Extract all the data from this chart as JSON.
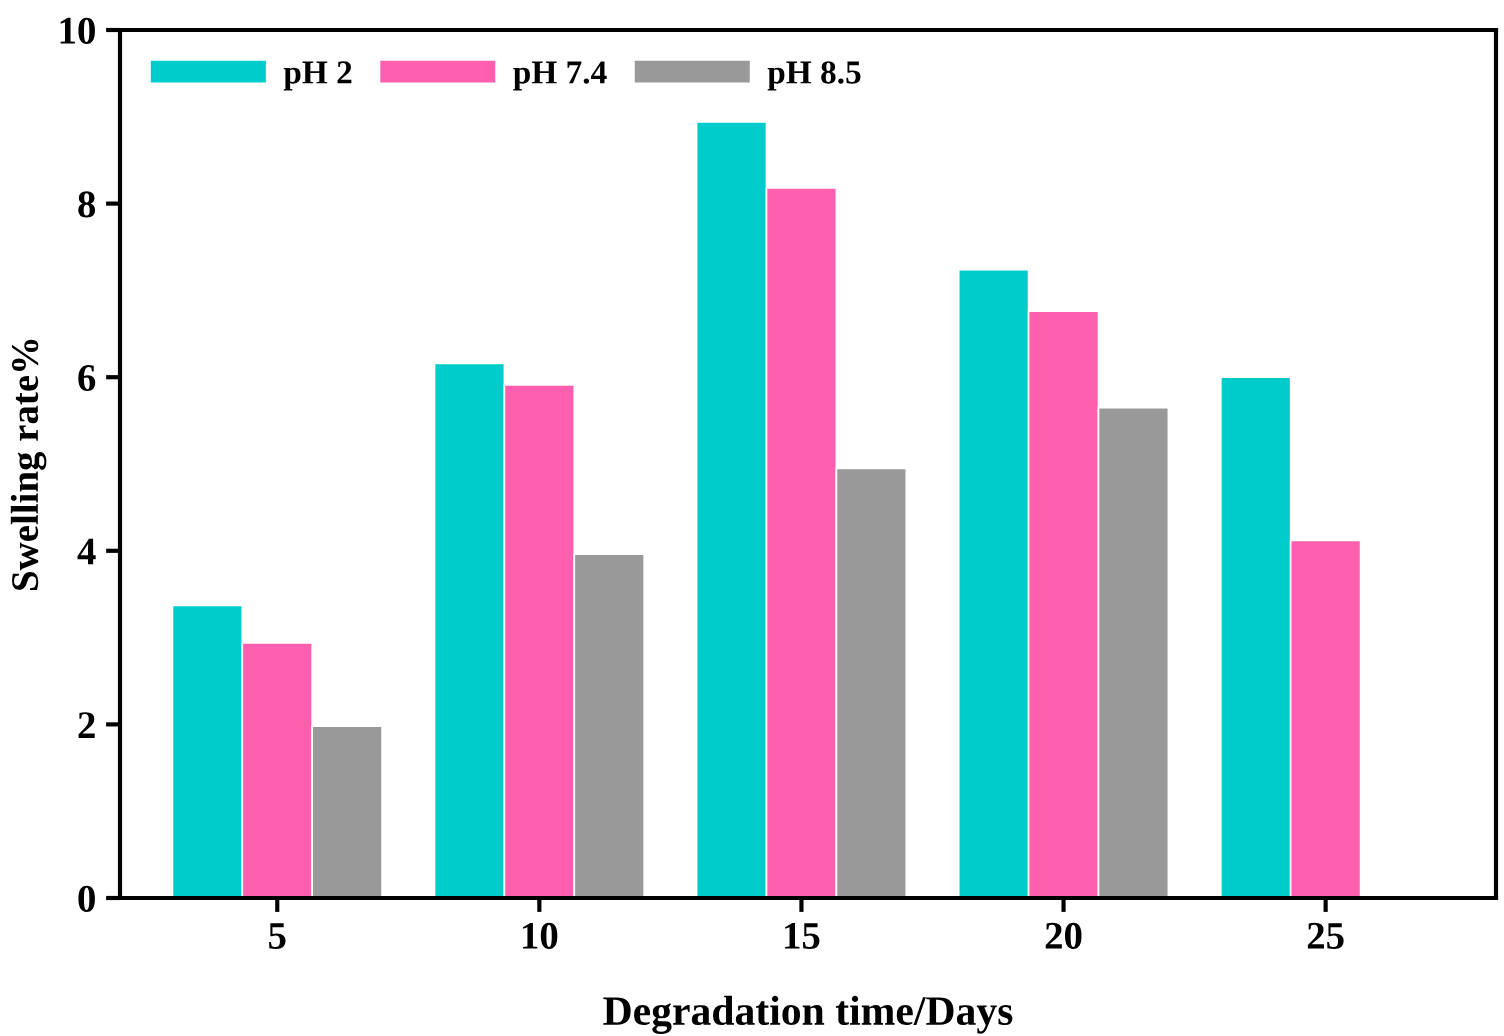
{
  "chart_data": {
    "type": "bar",
    "xlabel": "Degradation time/Days",
    "ylabel": "Swelling rate%",
    "categories": [
      "5",
      "10",
      "15",
      "20",
      "25"
    ],
    "series": [
      {
        "name": "pH 2",
        "color": "#00cccc",
        "values": [
          3.37,
          6.16,
          8.94,
          7.24,
          6.0
        ]
      },
      {
        "name": "pH 7.4",
        "color": "#ff5fae",
        "values": [
          2.94,
          5.91,
          8.18,
          6.76,
          4.12
        ]
      },
      {
        "name": "pH 8.5",
        "color": "#999999",
        "values": [
          1.98,
          3.96,
          4.95,
          5.65,
          null
        ]
      }
    ],
    "ylim": [
      0,
      10
    ],
    "yticks": [
      0,
      2,
      4,
      6,
      8,
      10
    ],
    "grid": false,
    "legend": "top left"
  }
}
